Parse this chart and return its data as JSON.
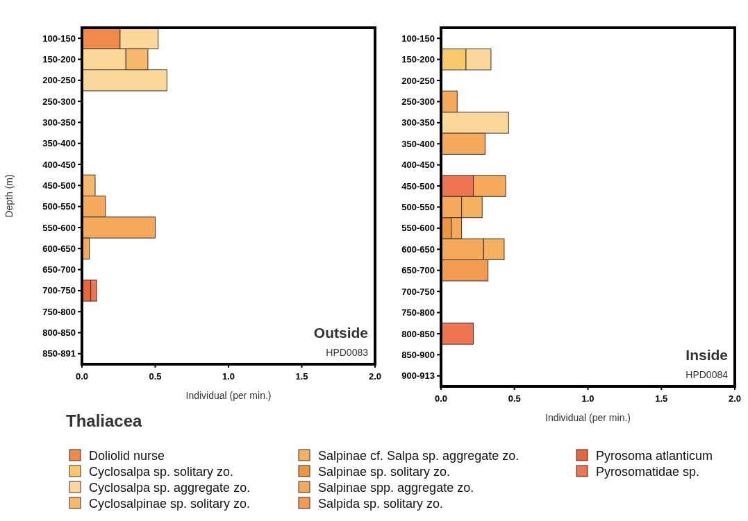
{
  "chart_data": [
    {
      "type": "bar",
      "orientation": "horizontal",
      "stacked": true,
      "ylabel": "Depth (m)",
      "xlabel": "Individual (per min.)",
      "legend_title": "Thaliacea",
      "legend": "bottom",
      "annotations": [
        "Outside",
        "HPD0083"
      ],
      "categories": [
        "100-150",
        "150-200",
        "200-250",
        "250-300",
        "300-350",
        "350-400",
        "400-450",
        "450-500",
        "500-550",
        "550-600",
        "600-650",
        "650-700",
        "700-750",
        "750-800",
        "800-850",
        "850-891"
      ],
      "xlim": [
        0,
        2
      ],
      "xticks": [
        {
          "value": 0,
          "label": "0.0"
        },
        {
          "value": 0.5,
          "label": "0.5"
        },
        {
          "value": 1,
          "label": "1.0"
        },
        {
          "value": 1.5,
          "label": "1.5"
        },
        {
          "value": 2,
          "label": "2.0"
        }
      ],
      "series": [
        {
          "name": "Doliolid nurse",
          "color": "#f08a4b",
          "values": [
            0.26,
            null,
            null,
            null,
            null,
            null,
            null,
            null,
            null,
            null,
            null,
            null,
            null,
            null,
            null,
            null
          ]
        },
        {
          "name": "Cyclosalpa sp. solitary zo.",
          "color": "#f9c86a",
          "values": [
            null,
            null,
            null,
            null,
            null,
            null,
            null,
            null,
            null,
            null,
            null,
            null,
            null,
            null,
            null,
            null
          ]
        },
        {
          "name": "Cyclosalpa sp. aggregate zo.",
          "color": "#fbd89a",
          "values": [
            0.26,
            0.3,
            0.58,
            null,
            null,
            null,
            null,
            null,
            null,
            null,
            null,
            null,
            null,
            null,
            null,
            null
          ]
        },
        {
          "name": "Cyclosalpinae sp. solitary zo.",
          "color": "#f6b86a",
          "values": [
            null,
            0.15,
            null,
            null,
            null,
            null,
            null,
            0.09,
            null,
            null,
            null,
            null,
            null,
            null,
            null,
            null
          ]
        },
        {
          "name": "Salpinae cf. Salpa sp. aggregate zo.",
          "color": "#f4b160",
          "values": [
            null,
            null,
            null,
            null,
            null,
            null,
            null,
            null,
            null,
            null,
            null,
            null,
            null,
            null,
            null,
            null
          ]
        },
        {
          "name": "Salpinae sp. solitary zo.",
          "color": "#f0963f",
          "values": [
            null,
            null,
            null,
            null,
            null,
            null,
            null,
            null,
            null,
            null,
            null,
            null,
            null,
            null,
            null,
            null
          ]
        },
        {
          "name": "Salpinae spp. aggregate zo.",
          "color": "#f5a95a",
          "values": [
            null,
            null,
            null,
            null,
            null,
            null,
            null,
            null,
            0.16,
            0.5,
            0.05,
            null,
            null,
            null,
            null,
            null
          ]
        },
        {
          "name": "Salpida sp. solitary zo.",
          "color": "#f29a50",
          "values": [
            null,
            null,
            null,
            null,
            null,
            null,
            null,
            null,
            null,
            null,
            null,
            null,
            null,
            null,
            null,
            null
          ]
        },
        {
          "name": "Pyrosoma atlanticum",
          "color": "#e8663c",
          "values": [
            null,
            null,
            null,
            null,
            null,
            null,
            null,
            null,
            null,
            null,
            null,
            null,
            0.06,
            null,
            null,
            null
          ]
        },
        {
          "name": "Pyrosomatidae sp.",
          "color": "#ee7550",
          "values": [
            null,
            null,
            null,
            null,
            null,
            null,
            null,
            null,
            null,
            null,
            null,
            null,
            0.04,
            null,
            null,
            null
          ]
        }
      ]
    },
    {
      "type": "bar",
      "orientation": "horizontal",
      "stacked": true,
      "xlabel": "Individual (per min.)",
      "annotations": [
        "Inside",
        "HPD0084"
      ],
      "categories": [
        "100-150",
        "150-200",
        "200-250",
        "250-300",
        "300-350",
        "350-400",
        "400-450",
        "450-500",
        "500-550",
        "550-600",
        "600-650",
        "650-700",
        "700-750",
        "750-800",
        "800-850",
        "850-900",
        "900-913"
      ],
      "xlim": [
        0,
        2
      ],
      "xticks": [
        {
          "value": 0,
          "label": "0.0"
        },
        {
          "value": 0.5,
          "label": "0.5"
        },
        {
          "value": 1,
          "label": "1.0"
        },
        {
          "value": 1.5,
          "label": "1.5"
        },
        {
          "value": 2,
          "label": "2.0"
        }
      ],
      "series": [
        {
          "color": "#ee7550",
          "values": [
            null,
            null,
            null,
            null,
            null,
            null,
            null,
            0.22,
            null,
            null,
            null,
            null,
            null,
            null,
            0.22,
            null,
            null
          ]
        },
        {
          "color": "#f9c86a",
          "values": [
            null,
            0.17,
            null,
            null,
            null,
            null,
            null,
            null,
            null,
            null,
            null,
            null,
            null,
            null,
            null,
            null,
            null
          ]
        },
        {
          "color": "#fbd89a",
          "values": [
            null,
            0.17,
            null,
            null,
            0.46,
            null,
            null,
            null,
            null,
            null,
            null,
            null,
            null,
            null,
            null,
            null,
            null
          ]
        },
        {
          "color": "#f0963f",
          "values": [
            null,
            null,
            null,
            null,
            null,
            null,
            null,
            null,
            null,
            0.07,
            null,
            null,
            null,
            null,
            null,
            null,
            null
          ]
        },
        {
          "color": "#f5a95a",
          "values": [
            null,
            null,
            null,
            0.11,
            null,
            0.3,
            null,
            0.22,
            0.14,
            0.07,
            0.29,
            null,
            null,
            null,
            null,
            null,
            null
          ]
        },
        {
          "color": "#f4b160",
          "values": [
            null,
            null,
            null,
            null,
            null,
            null,
            null,
            null,
            0.14,
            null,
            0.14,
            null,
            null,
            null,
            null,
            null,
            null
          ]
        },
        {
          "color": "#f29a50",
          "values": [
            null,
            null,
            null,
            null,
            null,
            null,
            null,
            null,
            null,
            null,
            null,
            0.32,
            null,
            null,
            null,
            null,
            null
          ]
        }
      ]
    }
  ]
}
